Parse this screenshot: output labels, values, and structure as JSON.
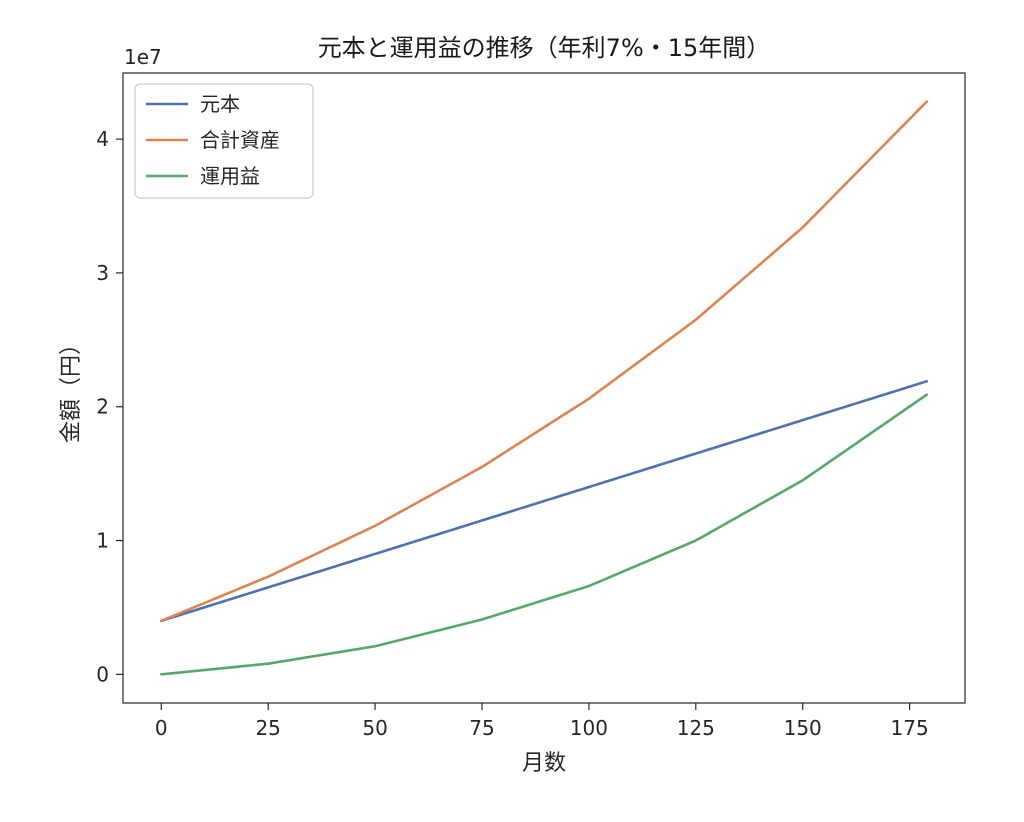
{
  "chart_data": {
    "type": "line",
    "title": "元本と運用益の推移（年利7%・15年間）",
    "xlabel": "月数",
    "ylabel": "金額（円）",
    "offset_label": "1e7",
    "xlim": [
      -8.95,
      187.95
    ],
    "ylim": [
      -2140000,
      44940000
    ],
    "x_ticks": [
      0,
      25,
      50,
      75,
      100,
      125,
      150,
      175
    ],
    "y_ticks": [
      0,
      1,
      2,
      3,
      4
    ],
    "y_tick_scale": 10000000,
    "grid": false,
    "legend_position": "upper-left",
    "x_range": [
      0,
      179
    ],
    "series": [
      {
        "name": "元本",
        "color": "#4c72b0",
        "x": [
          0,
          179
        ],
        "y": [
          4000000,
          21900000
        ]
      },
      {
        "name": "合計資産",
        "color": "#dd8452",
        "x": [
          0,
          25,
          50,
          75,
          100,
          125,
          150,
          179
        ],
        "y": [
          4000000,
          7300000,
          11100000,
          15500000,
          20600000,
          26500000,
          33400000,
          42800000
        ]
      },
      {
        "name": "運用益",
        "color": "#55a868",
        "x": [
          0,
          25,
          50,
          75,
          100,
          125,
          150,
          179
        ],
        "y": [
          0,
          800000,
          2100000,
          4100000,
          6600000,
          10000000,
          14500000,
          20900000
        ]
      }
    ]
  }
}
